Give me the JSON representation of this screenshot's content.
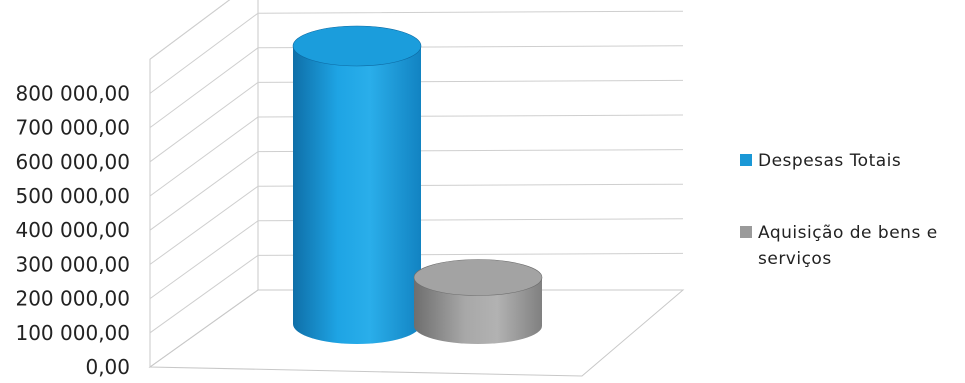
{
  "chart_data": {
    "type": "bar",
    "subtype": "3d-cylinder",
    "title": "",
    "xlabel": "",
    "ylabel": "",
    "ylim": [
      0,
      800000
    ],
    "y_ticks": [
      "0,00",
      "100 000,00",
      "200 000,00",
      "300 000,00",
      "400 000,00",
      "500 000,00",
      "600 000,00",
      "700 000,00",
      "800 000,00"
    ],
    "grid": true,
    "legend_position": "right",
    "series": [
      {
        "name": "Despesas Totais",
        "value": 860000,
        "color": "#1a98d6"
      },
      {
        "name": "Aquisição de bens e serviços",
        "value": 150000,
        "color": "#9a9a9a"
      }
    ],
    "legend_labels": [
      [
        "Despesas Totais"
      ],
      [
        "Aquisição de bens e",
        "serviços"
      ]
    ]
  }
}
